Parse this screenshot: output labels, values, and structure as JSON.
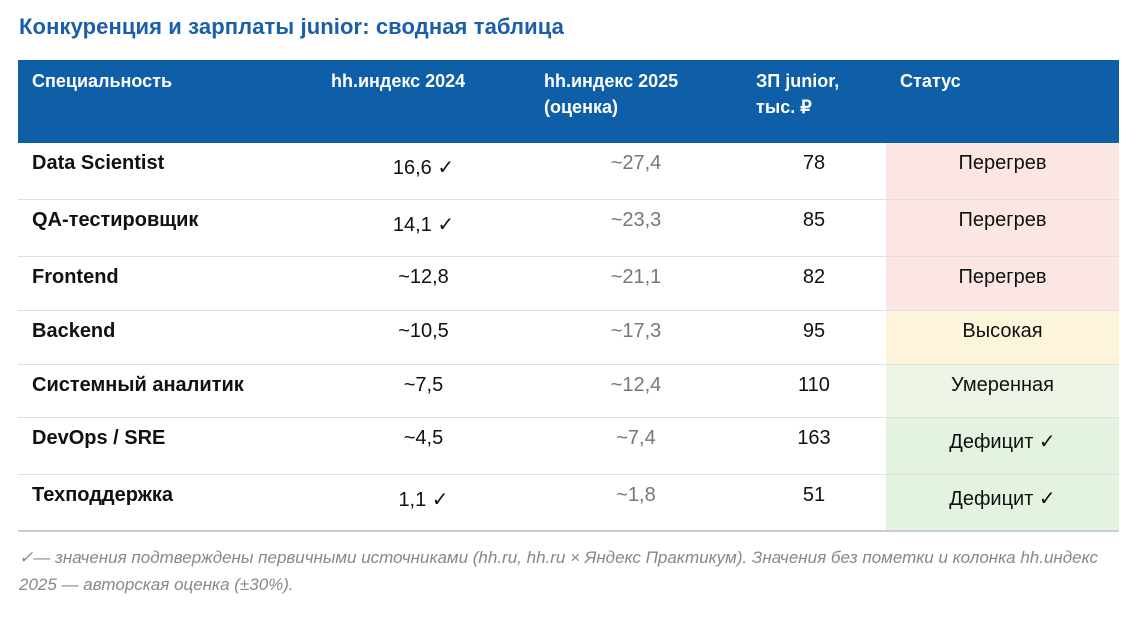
{
  "title": "Конкуренция и зарплаты junior: сводная таблица",
  "headers": {
    "specialty": "Специальность",
    "index2024": "hh.индекс 2024",
    "index2025_line1": "hh.индекс 2025",
    "index2025_line2": "(оценка)",
    "salary_line1": "ЗП junior,",
    "salary_line2": "тыс. ₽",
    "status": "Статус"
  },
  "rows": [
    {
      "specialty": "Data Scientist",
      "index2024": "16,6 ✓",
      "index2025": "~27,4",
      "salary": "78",
      "status": "Перегрев",
      "status_color": "#fbe6e4"
    },
    {
      "specialty": "QA-тестировщик",
      "index2024": "14,1 ✓",
      "index2025": "~23,3",
      "salary": "85",
      "status": "Перегрев",
      "status_color": "#fbe6e4"
    },
    {
      "specialty": "Frontend",
      "index2024": "~12,8",
      "index2025": "~21,1",
      "salary": "82",
      "status": "Перегрев",
      "status_color": "#fbe6e4"
    },
    {
      "specialty": "Backend",
      "index2024": "~10,5",
      "index2025": "~17,3",
      "salary": "95",
      "status": "Высокая",
      "status_color": "#fdf4dc"
    },
    {
      "specialty": "Системный аналитик",
      "index2024": "~7,5",
      "index2025": "~12,4",
      "salary": "110",
      "status": "Умеренная",
      "status_color": "#ecf5e6"
    },
    {
      "specialty": "DevOps / SRE",
      "index2024": "~4,5",
      "index2025": "~7,4",
      "salary": "163",
      "status": "Дефицит ✓",
      "status_color": "#e3f3e0"
    },
    {
      "specialty": "Техподдержка",
      "index2024": "1,1 ✓",
      "index2025": "~1,8",
      "salary": "51",
      "status": "Дефицит ✓",
      "status_color": "#e3f3e0"
    }
  ],
  "footnote": "✓— значения подтверждены первичными источниками (hh.ru, hh.ru × Яндекс Практикум). Значения без пометки и колонка hh.индекс 2025 — авторская оценка (±30%).",
  "colors": {
    "header_bg": "#0f5fa8",
    "title": "#1a5fa8"
  }
}
